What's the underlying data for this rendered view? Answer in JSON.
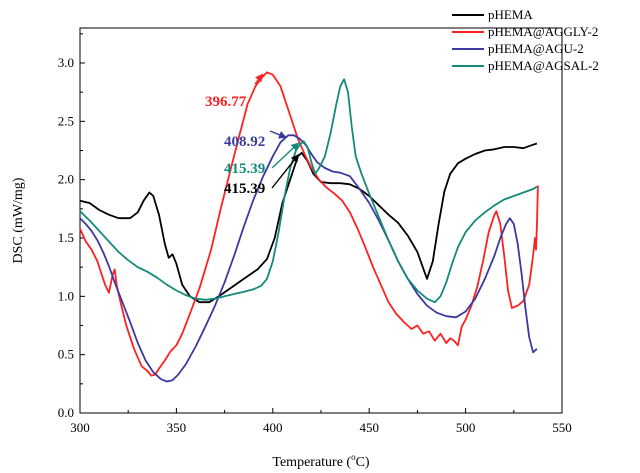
{
  "chart_data": {
    "type": "line",
    "xlabel": "Temperature (",
    "xlabel_sup": "o",
    "xlabel_unit": "C)",
    "ylabel": "DSC (mW/mg)",
    "xlim": [
      300,
      550
    ],
    "ylim": [
      0.0,
      3.3
    ],
    "x_ticks": [
      "300",
      "350",
      "400",
      "450",
      "500",
      "550"
    ],
    "y_ticks": [
      "0.0",
      "0.5",
      "1.0",
      "1.5",
      "2.0",
      "2.5",
      "3.0"
    ],
    "legend_position": "top-right",
    "series": [
      {
        "name": "pHEMA",
        "color": "#000000",
        "points": [
          [
            300,
            1.82
          ],
          [
            305,
            1.8
          ],
          [
            310,
            1.74
          ],
          [
            315,
            1.7
          ],
          [
            320,
            1.67
          ],
          [
            326,
            1.67
          ],
          [
            330,
            1.72
          ],
          [
            333,
            1.82
          ],
          [
            336,
            1.89
          ],
          [
            338,
            1.86
          ],
          [
            341,
            1.7
          ],
          [
            344,
            1.45
          ],
          [
            346,
            1.33
          ],
          [
            348,
            1.36
          ],
          [
            350,
            1.28
          ],
          [
            353,
            1.1
          ],
          [
            357,
            1.0
          ],
          [
            362,
            0.95
          ],
          [
            367,
            0.95
          ],
          [
            372,
            1.0
          ],
          [
            378,
            1.07
          ],
          [
            385,
            1.15
          ],
          [
            392,
            1.23
          ],
          [
            397,
            1.32
          ],
          [
            401,
            1.5
          ],
          [
            405,
            1.8
          ],
          [
            410,
            2.05
          ],
          [
            413,
            2.2
          ],
          [
            415,
            2.23
          ],
          [
            418,
            2.16
          ],
          [
            421,
            2.05
          ],
          [
            425,
            1.98
          ],
          [
            430,
            1.97
          ],
          [
            435,
            1.97
          ],
          [
            440,
            1.96
          ],
          [
            445,
            1.92
          ],
          [
            450,
            1.86
          ],
          [
            455,
            1.78
          ],
          [
            460,
            1.7
          ],
          [
            465,
            1.63
          ],
          [
            470,
            1.52
          ],
          [
            475,
            1.38
          ],
          [
            478,
            1.24
          ],
          [
            480,
            1.15
          ],
          [
            483,
            1.3
          ],
          [
            486,
            1.62
          ],
          [
            489,
            1.9
          ],
          [
            492,
            2.05
          ],
          [
            496,
            2.14
          ],
          [
            500,
            2.18
          ],
          [
            505,
            2.22
          ],
          [
            510,
            2.25
          ],
          [
            515,
            2.26
          ],
          [
            520,
            2.28
          ],
          [
            525,
            2.28
          ],
          [
            530,
            2.27
          ],
          [
            535,
            2.3
          ],
          [
            537,
            2.31
          ]
        ]
      },
      {
        "name": "pHEMA@AGGLY-2",
        "color": "#ff2020",
        "points": [
          [
            300,
            1.58
          ],
          [
            303,
            1.47
          ],
          [
            306,
            1.4
          ],
          [
            309,
            1.3
          ],
          [
            311,
            1.2
          ],
          [
            313,
            1.1
          ],
          [
            315,
            1.03
          ],
          [
            317,
            1.19
          ],
          [
            318,
            1.23
          ],
          [
            319,
            1.1
          ],
          [
            321,
            0.95
          ],
          [
            324,
            0.75
          ],
          [
            328,
            0.55
          ],
          [
            332,
            0.4
          ],
          [
            335,
            0.36
          ],
          [
            337,
            0.32
          ],
          [
            339,
            0.33
          ],
          [
            341,
            0.38
          ],
          [
            344,
            0.45
          ],
          [
            347,
            0.53
          ],
          [
            350,
            0.58
          ],
          [
            353,
            0.68
          ],
          [
            357,
            0.85
          ],
          [
            362,
            1.07
          ],
          [
            368,
            1.4
          ],
          [
            373,
            1.75
          ],
          [
            378,
            2.08
          ],
          [
            383,
            2.4
          ],
          [
            387,
            2.65
          ],
          [
            391,
            2.8
          ],
          [
            394,
            2.87
          ],
          [
            397,
            2.92
          ],
          [
            400,
            2.9
          ],
          [
            404,
            2.8
          ],
          [
            409,
            2.55
          ],
          [
            413,
            2.35
          ],
          [
            417,
            2.2
          ],
          [
            420,
            2.1
          ],
          [
            424,
            2.0
          ],
          [
            428,
            1.93
          ],
          [
            432,
            1.88
          ],
          [
            436,
            1.82
          ],
          [
            440,
            1.72
          ],
          [
            444,
            1.58
          ],
          [
            448,
            1.42
          ],
          [
            452,
            1.25
          ],
          [
            456,
            1.1
          ],
          [
            460,
            0.95
          ],
          [
            464,
            0.85
          ],
          [
            468,
            0.78
          ],
          [
            472,
            0.72
          ],
          [
            475,
            0.75
          ],
          [
            478,
            0.68
          ],
          [
            481,
            0.7
          ],
          [
            484,
            0.62
          ],
          [
            487,
            0.68
          ],
          [
            490,
            0.6
          ],
          [
            492,
            0.64
          ],
          [
            494,
            0.62
          ],
          [
            496,
            0.58
          ],
          [
            498,
            0.74
          ],
          [
            500,
            0.8
          ],
          [
            503,
            0.92
          ],
          [
            506,
            1.08
          ],
          [
            509,
            1.3
          ],
          [
            512,
            1.55
          ],
          [
            515,
            1.7
          ],
          [
            516,
            1.73
          ],
          [
            518,
            1.62
          ],
          [
            520,
            1.35
          ],
          [
            522,
            1.05
          ],
          [
            524,
            0.9
          ],
          [
            527,
            0.92
          ],
          [
            530,
            0.96
          ],
          [
            533,
            1.1
          ],
          [
            535,
            1.35
          ],
          [
            536,
            1.5
          ],
          [
            536.5,
            1.4
          ],
          [
            537,
            1.6
          ],
          [
            537.5,
            1.95
          ]
        ]
      },
      {
        "name": "pHEMA@AGU-2",
        "color": "#3a3aa0",
        "points": [
          [
            300,
            1.67
          ],
          [
            303,
            1.62
          ],
          [
            306,
            1.56
          ],
          [
            309,
            1.48
          ],
          [
            312,
            1.38
          ],
          [
            315,
            1.26
          ],
          [
            318,
            1.12
          ],
          [
            322,
            0.95
          ],
          [
            326,
            0.78
          ],
          [
            330,
            0.6
          ],
          [
            334,
            0.45
          ],
          [
            338,
            0.35
          ],
          [
            342,
            0.29
          ],
          [
            345,
            0.27
          ],
          [
            348,
            0.28
          ],
          [
            351,
            0.33
          ],
          [
            355,
            0.42
          ],
          [
            360,
            0.57
          ],
          [
            365,
            0.74
          ],
          [
            370,
            0.92
          ],
          [
            375,
            1.12
          ],
          [
            380,
            1.35
          ],
          [
            385,
            1.6
          ],
          [
            390,
            1.83
          ],
          [
            395,
            2.03
          ],
          [
            400,
            2.2
          ],
          [
            404,
            2.32
          ],
          [
            408,
            2.38
          ],
          [
            411,
            2.38
          ],
          [
            414,
            2.35
          ],
          [
            417,
            2.3
          ],
          [
            420,
            2.22
          ],
          [
            423,
            2.15
          ],
          [
            427,
            2.1
          ],
          [
            431,
            2.07
          ],
          [
            435,
            2.06
          ],
          [
            440,
            2.03
          ],
          [
            445,
            1.92
          ],
          [
            450,
            1.8
          ],
          [
            455,
            1.65
          ],
          [
            460,
            1.48
          ],
          [
            465,
            1.3
          ],
          [
            470,
            1.15
          ],
          [
            475,
            1.02
          ],
          [
            480,
            0.92
          ],
          [
            485,
            0.86
          ],
          [
            490,
            0.83
          ],
          [
            495,
            0.82
          ],
          [
            500,
            0.87
          ],
          [
            505,
            0.98
          ],
          [
            510,
            1.15
          ],
          [
            515,
            1.35
          ],
          [
            518,
            1.5
          ],
          [
            521,
            1.62
          ],
          [
            523,
            1.67
          ],
          [
            525,
            1.62
          ],
          [
            527,
            1.45
          ],
          [
            529,
            1.2
          ],
          [
            531,
            0.9
          ],
          [
            533,
            0.65
          ],
          [
            535,
            0.52
          ],
          [
            537,
            0.55
          ]
        ]
      },
      {
        "name": "pHEMA@AGSAL-2",
        "color": "#138a7a",
        "points": [
          [
            300,
            1.73
          ],
          [
            305,
            1.65
          ],
          [
            310,
            1.56
          ],
          [
            315,
            1.47
          ],
          [
            320,
            1.38
          ],
          [
            325,
            1.31
          ],
          [
            330,
            1.25
          ],
          [
            335,
            1.21
          ],
          [
            340,
            1.16
          ],
          [
            345,
            1.1
          ],
          [
            350,
            1.05
          ],
          [
            355,
            1.01
          ],
          [
            360,
            0.98
          ],
          [
            365,
            0.97
          ],
          [
            370,
            0.98
          ],
          [
            375,
            1.0
          ],
          [
            380,
            1.02
          ],
          [
            385,
            1.04
          ],
          [
            390,
            1.06
          ],
          [
            394,
            1.09
          ],
          [
            397,
            1.15
          ],
          [
            400,
            1.3
          ],
          [
            403,
            1.55
          ],
          [
            406,
            1.85
          ],
          [
            409,
            2.1
          ],
          [
            412,
            2.25
          ],
          [
            414,
            2.3
          ],
          [
            416,
            2.33
          ],
          [
            418,
            2.28
          ],
          [
            420,
            2.15
          ],
          [
            422,
            2.05
          ],
          [
            424,
            2.1
          ],
          [
            427,
            2.2
          ],
          [
            430,
            2.4
          ],
          [
            433,
            2.65
          ],
          [
            435,
            2.8
          ],
          [
            437,
            2.86
          ],
          [
            439,
            2.75
          ],
          [
            441,
            2.45
          ],
          [
            443,
            2.2
          ],
          [
            446,
            2.05
          ],
          [
            450,
            1.88
          ],
          [
            455,
            1.68
          ],
          [
            460,
            1.48
          ],
          [
            465,
            1.3
          ],
          [
            470,
            1.15
          ],
          [
            475,
            1.05
          ],
          [
            480,
            0.98
          ],
          [
            484,
            0.95
          ],
          [
            487,
            1.0
          ],
          [
            490,
            1.12
          ],
          [
            493,
            1.28
          ],
          [
            496,
            1.42
          ],
          [
            500,
            1.55
          ],
          [
            505,
            1.65
          ],
          [
            510,
            1.72
          ],
          [
            515,
            1.78
          ],
          [
            520,
            1.83
          ],
          [
            525,
            1.86
          ],
          [
            530,
            1.89
          ],
          [
            535,
            1.92
          ],
          [
            537,
            1.94
          ]
        ]
      }
    ],
    "annotations": [
      {
        "label": "396.77",
        "color": "#ff2020",
        "x": 396.77,
        "y": 2.92
      },
      {
        "label": "408.92",
        "color": "#3a3aa0",
        "x": 408.92,
        "y": 2.38
      },
      {
        "label": "415.39",
        "color": "#138a7a",
        "x": 415.39,
        "y": 2.33
      },
      {
        "label": "415.39",
        "color": "#000000",
        "x": 415.39,
        "y": 2.23
      }
    ]
  }
}
